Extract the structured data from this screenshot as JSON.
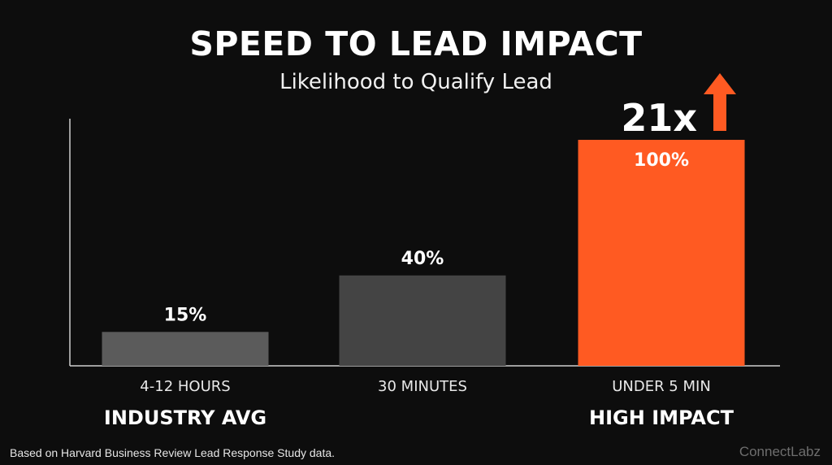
{
  "chart_data": {
    "type": "bar",
    "title": "SPEED TO LEAD IMPACT",
    "subtitle": "Likelihood to Qualify Lead",
    "categories": [
      "4-12 HOURS",
      "30 MINUTES",
      "UNDER 5 MIN"
    ],
    "group_labels": [
      "INDUSTRY AVG",
      "",
      "HIGH IMPACT"
    ],
    "values": [
      15,
      40,
      100
    ],
    "value_labels": [
      "15%",
      "40%",
      "100%"
    ],
    "bar_colors": [
      "#5b5b5b",
      "#444444",
      "#ff5a22"
    ],
    "ylim": [
      0,
      100
    ],
    "grid": false,
    "annotation": {
      "text": "21x",
      "icon": "arrow-up-icon",
      "color": "#ff5a22",
      "bar_index": 2
    }
  },
  "footnote": "Based on Harvard Business Review Lead Response Study data.",
  "brand": "ConnectLabz"
}
